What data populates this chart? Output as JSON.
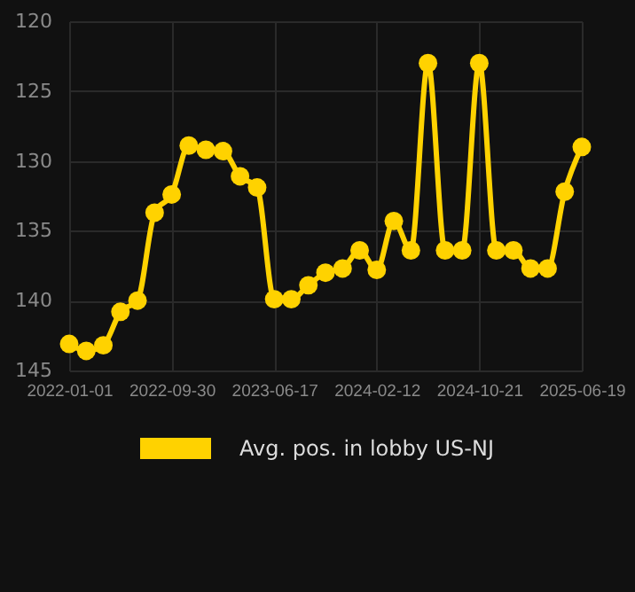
{
  "chart_data": {
    "type": "line",
    "categories": [
      "2022-01-01",
      null,
      null,
      null,
      null,
      null,
      "2022-09-30",
      null,
      null,
      null,
      null,
      null,
      "2023-06-17",
      null,
      null,
      null,
      null,
      null,
      "2024-02-12",
      null,
      null,
      null,
      null,
      null,
      "2024-10-21",
      null,
      null,
      null,
      null,
      null,
      "2025-06-19"
    ],
    "series": [
      {
        "name": "Avg. pos. in lobby US-NJ",
        "color": "#ffd200",
        "values": [
          143.1,
          143.6,
          143.2,
          140.8,
          140.0,
          133.7,
          132.4,
          128.9,
          129.2,
          129.3,
          131.1,
          131.9,
          139.9,
          139.9,
          138.9,
          138.0,
          137.7,
          136.4,
          137.8,
          134.3,
          136.4,
          123.0,
          136.4,
          136.4,
          123.0,
          136.4,
          136.4,
          137.7,
          137.7,
          132.2,
          129.0
        ]
      }
    ],
    "ylim": [
      145,
      120
    ],
    "yticks": [
      120,
      125,
      130,
      135,
      140,
      145
    ],
    "grid": true,
    "legend": "bottom",
    "marker": "circle",
    "line_style": "solid"
  }
}
